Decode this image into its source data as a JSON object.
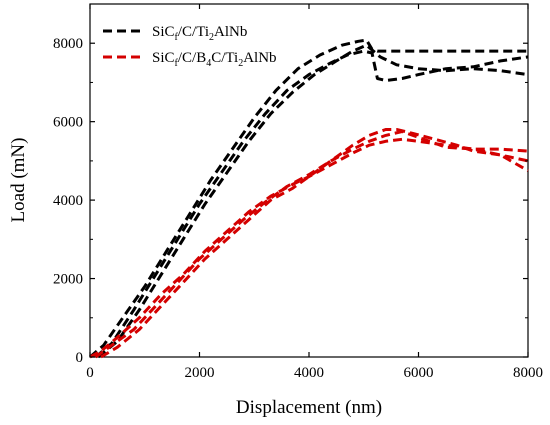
{
  "chart_data": {
    "type": "line",
    "xlabel": "Displacement (nm)",
    "ylabel": "Load (mN)",
    "xlim": [
      0,
      8000
    ],
    "ylim": [
      0,
      9000
    ],
    "xticks": [
      0,
      2000,
      4000,
      6000,
      8000
    ],
    "yticks": [
      0,
      2000,
      4000,
      6000,
      8000
    ],
    "grid": false,
    "legend_position": "top-left",
    "series": [
      {
        "name": "SiC_f/C/Ti_2AlNb",
        "legend_parts": [
          {
            "t": "SiC",
            "s": ""
          },
          {
            "t": "f",
            "s": "sub"
          },
          {
            "t": "/C/Ti",
            "s": ""
          },
          {
            "t": "2",
            "s": "sub"
          },
          {
            "t": "AlNb",
            "s": ""
          }
        ],
        "color": "#000000",
        "curves": [
          {
            "x": [
              0,
              250,
              600,
              1000,
              1400,
              1800,
              2200,
              2600,
              3000,
              3400,
              3800,
              4200,
              4600,
              4900,
              5050,
              5150,
              5250,
              5600,
              6000,
              6500,
              7000,
              7500,
              8000
            ],
            "y": [
              0,
              300,
              1000,
              1800,
              2700,
              3600,
              4500,
              5300,
              6100,
              6800,
              7350,
              7700,
              7950,
              8050,
              8080,
              7850,
              7800,
              7800,
              7800,
              7800,
              7800,
              7800,
              7800
            ]
          },
          {
            "x": [
              100,
              400,
              800,
              1200,
              1600,
              2000,
              2400,
              2800,
              3200,
              3600,
              4000,
              4400,
              4700,
              5000,
              5150,
              5250,
              5400,
              5700,
              6000,
              6500,
              7000,
              7500,
              8000
            ],
            "y": [
              0,
              350,
              1200,
              2100,
              3000,
              3900,
              4700,
              5500,
              6200,
              6800,
              7200,
              7500,
              7700,
              7800,
              7750,
              7100,
              7050,
              7100,
              7200,
              7350,
              7400,
              7550,
              7650
            ]
          },
          {
            "x": [
              150,
              500,
              900,
              1300,
              1700,
              2100,
              2500,
              2900,
              3300,
              3700,
              4100,
              4500,
              4800,
              5050,
              5300,
              5600,
              6000,
              6500,
              7000,
              7500,
              8000
            ],
            "y": [
              0,
              400,
              1200,
              2100,
              3000,
              3900,
              4700,
              5500,
              6200,
              6750,
              7200,
              7550,
              7800,
              7950,
              7650,
              7450,
              7350,
              7300,
              7350,
              7300,
              7200
            ]
          }
        ]
      },
      {
        "name": "SiC_f/C/B_4C/Ti_2AlNb",
        "legend_parts": [
          {
            "t": "SiC",
            "s": ""
          },
          {
            "t": "f",
            "s": "sub"
          },
          {
            "t": "/C/B",
            "s": ""
          },
          {
            "t": "4",
            "s": "sub"
          },
          {
            "t": "C/Ti",
            "s": ""
          },
          {
            "t": "2",
            "s": "sub"
          },
          {
            "t": "AlNb",
            "s": ""
          }
        ],
        "color": "#d40000",
        "curves": [
          {
            "x": [
              0,
              200,
              500,
              900,
              1300,
              1700,
              2100,
              2500,
              2900,
              3300,
              3700,
              4000,
              4400,
              4800,
              5100,
              5400,
              5700,
              6000,
              6500,
              7000,
              7500,
              8000
            ],
            "y": [
              0,
              150,
              500,
              1000,
              1600,
              2100,
              2700,
              3200,
              3700,
              4100,
              4400,
              4600,
              4900,
              5200,
              5400,
              5500,
              5550,
              5500,
              5400,
              5300,
              5150,
              4750
            ]
          },
          {
            "x": [
              100,
              400,
              800,
              1200,
              1600,
              2000,
              2400,
              2800,
              3200,
              3600,
              4000,
              4400,
              4800,
              5100,
              5400,
              5700,
              6000,
              6500,
              7000,
              7500,
              8000
            ],
            "y": [
              0,
              300,
              700,
              1300,
              1900,
              2500,
              3000,
              3500,
              3950,
              4350,
              4650,
              5000,
              5300,
              5500,
              5650,
              5750,
              5600,
              5350,
              5300,
              5300,
              5250
            ]
          },
          {
            "x": [
              200,
              500,
              900,
              1300,
              1700,
              2100,
              2500,
              2900,
              3300,
              3700,
              4000,
              4400,
              4800,
              5100,
              5400,
              5600,
              5900,
              6300,
              6700,
              7000,
              7500,
              8000
            ],
            "y": [
              0,
              250,
              700,
              1300,
              1900,
              2500,
              3000,
              3500,
              4000,
              4300,
              4600,
              5000,
              5400,
              5650,
              5800,
              5800,
              5700,
              5550,
              5400,
              5250,
              5150,
              5000
            ]
          }
        ]
      }
    ]
  }
}
